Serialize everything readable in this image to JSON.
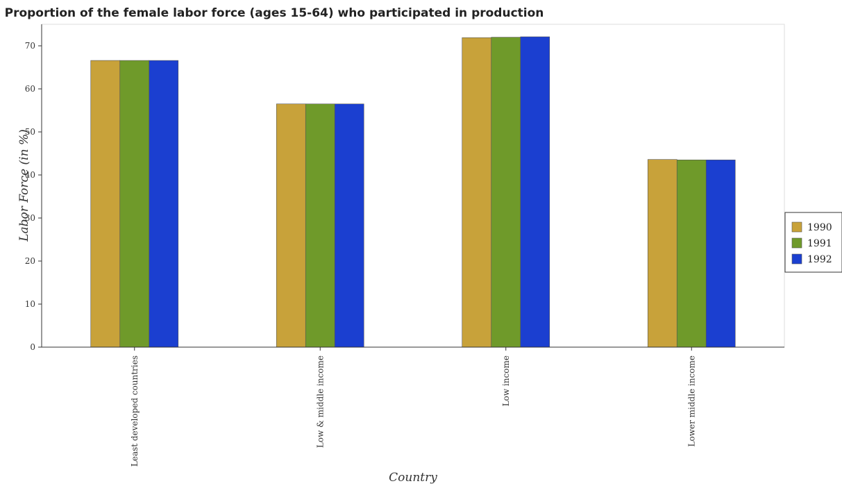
{
  "chart_data": {
    "type": "bar",
    "title": "Proportion of the female labor force (ages 15-64) who participated in production",
    "xlabel": "Country",
    "ylabel": "Labor Force (in %)",
    "categories": [
      "Least developed countries",
      "Low & middle income",
      "Low income",
      "Lower middle income"
    ],
    "series": [
      {
        "name": "1990",
        "color": "#c8a23a",
        "values": [
          66.6,
          56.5,
          71.9,
          43.6
        ]
      },
      {
        "name": "1991",
        "color": "#6f9a2a",
        "values": [
          66.6,
          56.5,
          72.0,
          43.5
        ]
      },
      {
        "name": "1992",
        "color": "#1b3fd0",
        "values": [
          66.6,
          56.5,
          72.1,
          43.5
        ]
      }
    ],
    "ylim": [
      0,
      75
    ],
    "yticks": [
      0,
      10,
      20,
      30,
      40,
      50,
      60,
      70
    ],
    "grid": false,
    "legend_position": "right"
  }
}
